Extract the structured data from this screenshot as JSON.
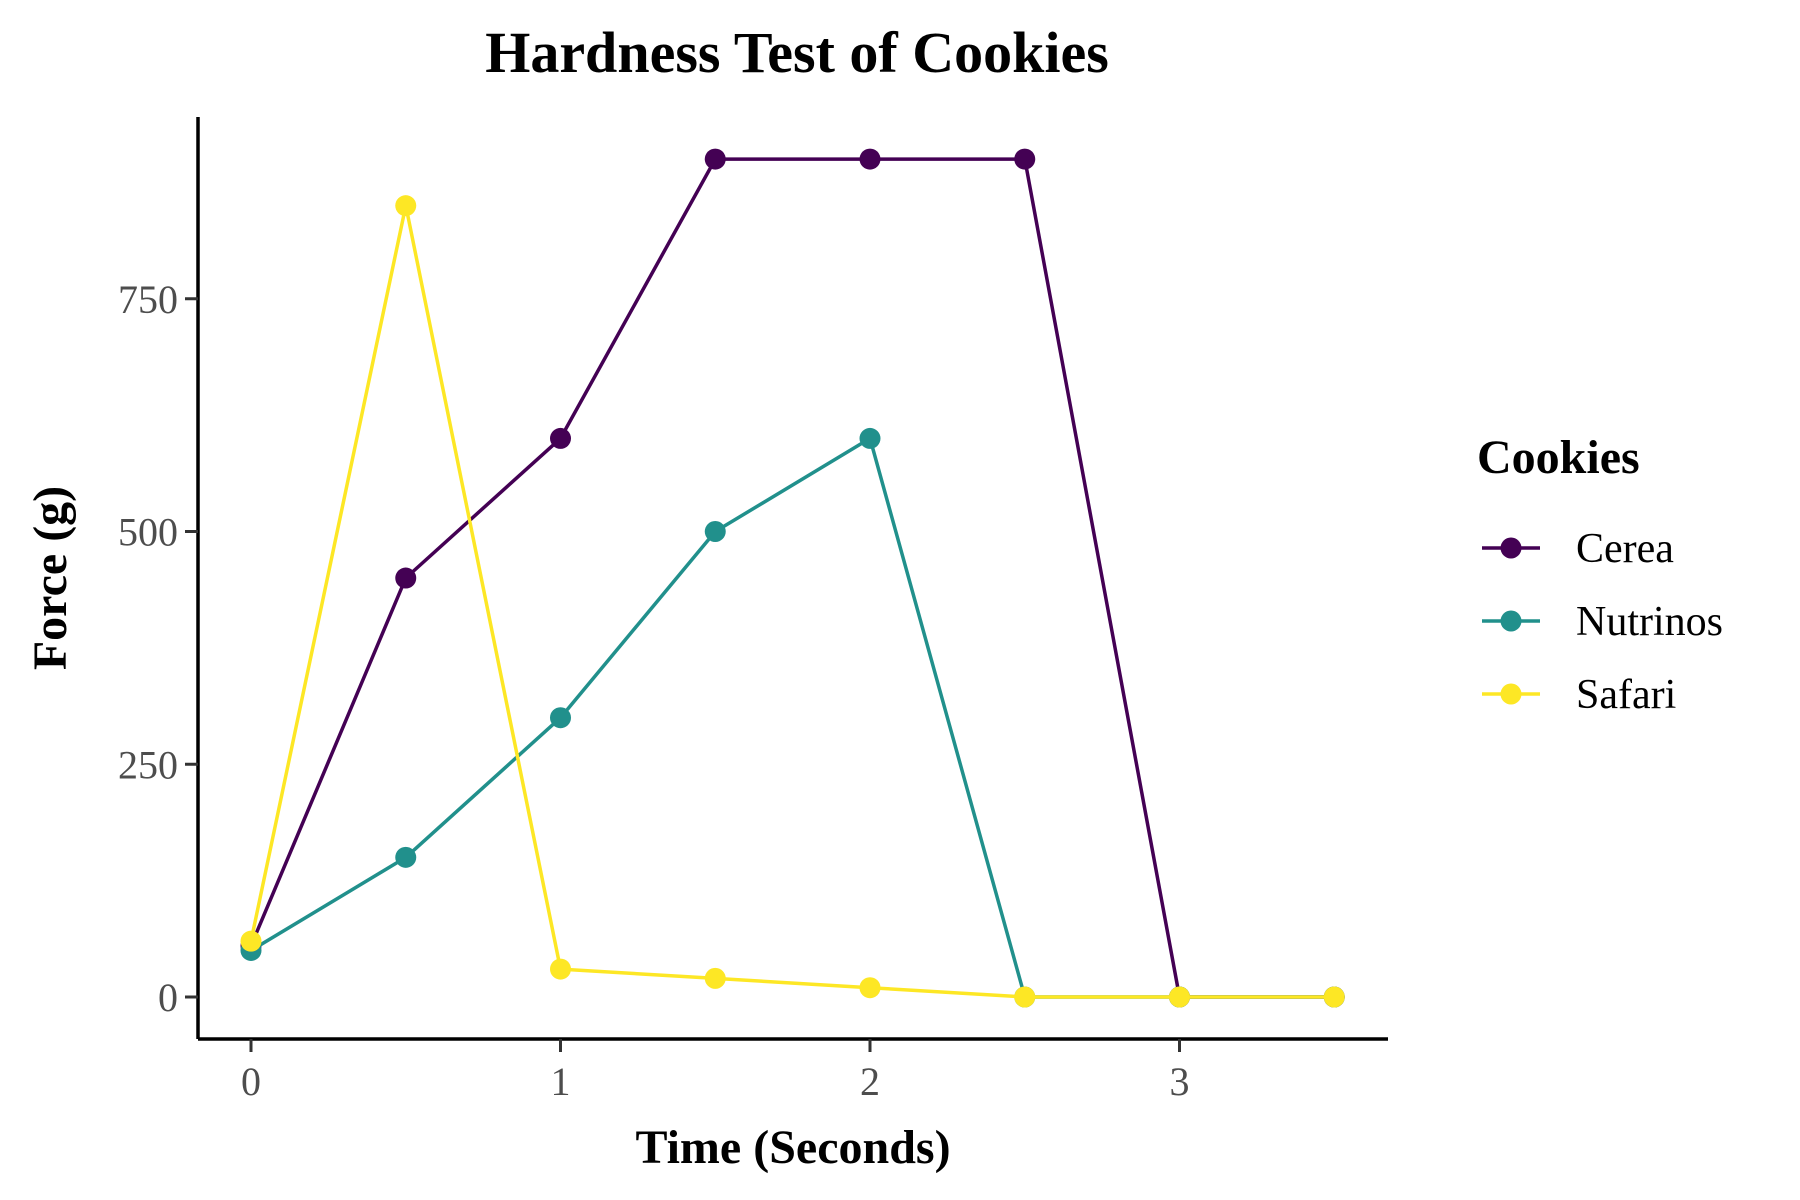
{
  "chart_data": {
    "type": "line",
    "title": "Hardness Test of Cookies",
    "xlabel": "Time (Seconds)",
    "ylabel": "Force (g)",
    "xlim": [
      -0.17,
      3.67
    ],
    "ylim": [
      -90,
      950
    ],
    "xticks": [
      0,
      1,
      2,
      3
    ],
    "yticks": [
      0,
      250,
      500,
      750
    ],
    "grid": false,
    "legend": {
      "title": "Cookies",
      "position": "right"
    },
    "series": [
      {
        "name": "Cerea",
        "color": "#440154",
        "x": [
          0,
          0.5,
          1,
          1.5,
          2,
          2.5,
          3,
          3.5
        ],
        "y": [
          55,
          450,
          600,
          900,
          900,
          900,
          0,
          0
        ]
      },
      {
        "name": "Nutrinos",
        "color": "#21908C",
        "x": [
          0,
          0.5,
          1,
          1.5,
          2,
          2.5,
          3,
          3.5
        ],
        "y": [
          50,
          150,
          300,
          500,
          600,
          0,
          0,
          0
        ]
      },
      {
        "name": "Safari",
        "color": "#FDE725",
        "x": [
          0,
          0.5,
          1,
          1.5,
          2,
          2.5,
          3,
          3.5
        ],
        "y": [
          60,
          850,
          30,
          20,
          10,
          0,
          0,
          0
        ]
      }
    ]
  }
}
